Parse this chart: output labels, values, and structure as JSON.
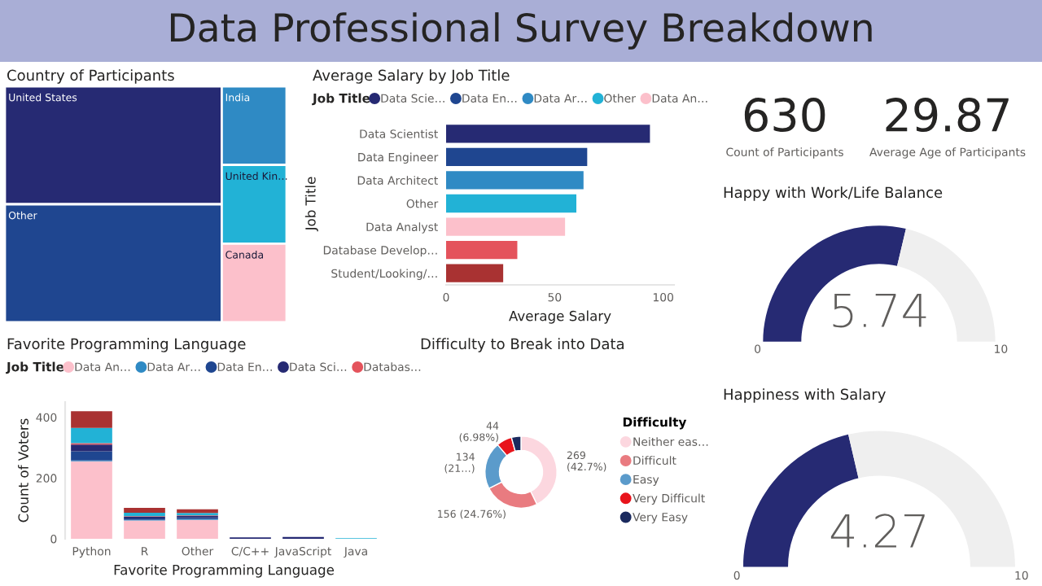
{
  "chart_data": [
    {
      "type": "other",
      "title": "Data Professional Survey Breakdown"
    },
    {
      "type": "other",
      "title": "Country of Participants",
      "categories": [
        "United States",
        "Other",
        "India",
        "United Kin…",
        "Canada"
      ],
      "colors": [
        "#262a73",
        "#1f4690",
        "#2f8ac4",
        "#22b2d6",
        "#fcc0cb"
      ]
    },
    {
      "type": "bar",
      "orientation": "horizontal",
      "title": "Average Salary by Job Title",
      "xlabel": "Average Salary",
      "ylabel": "Job Title",
      "legend_title": "Job Title",
      "legend": "top",
      "categories": [
        "Data Scientist",
        "Data Engineer",
        "Data Architect",
        "Other",
        "Data Analyst",
        "Database Develop…",
        "Student/Looking/…"
      ],
      "series": [
        {
          "name": "Data Scie…",
          "color": "#262a73",
          "values": [
            93.9,
            null,
            null,
            null,
            null,
            null,
            null
          ]
        },
        {
          "name": "Data En…",
          "color": "#1f4690",
          "values": [
            null,
            65,
            null,
            null,
            null,
            null,
            null
          ]
        },
        {
          "name": "Data Ar…",
          "color": "#2f8ac4",
          "values": [
            null,
            null,
            63.3,
            null,
            null,
            null,
            null
          ]
        },
        {
          "name": "Other",
          "color": "#22b2d6",
          "values": [
            null,
            null,
            null,
            60,
            null,
            null,
            null
          ]
        },
        {
          "name": "Data An…",
          "color": "#fcc0cb",
          "values": [
            null,
            null,
            null,
            null,
            54.8,
            null,
            null
          ]
        },
        {
          "color": "#e4535c",
          "values": [
            null,
            null,
            null,
            null,
            null,
            32.8,
            null
          ]
        },
        {
          "color": "#a93232",
          "values": [
            null,
            null,
            null,
            null,
            null,
            null,
            26.3
          ]
        }
      ],
      "xlim": [
        0,
        105
      ],
      "xticks": [
        0,
        50,
        100
      ]
    },
    {
      "type": "other",
      "categories": [
        "Count of Participants",
        "Average Age of Participants"
      ],
      "values": [
        630,
        29.87
      ],
      "data_labels": true
    },
    {
      "type": "donut",
      "title": "Happy with Work/Life Balance",
      "categories": [
        null,
        null
      ],
      "values": [
        5.74,
        4.26
      ],
      "value_labels": [
        "5.74",
        null
      ],
      "colors": [
        "#262a73",
        "#efefef"
      ],
      "annotations": [
        "0",
        "10"
      ]
    },
    {
      "type": "bar",
      "stacked": true,
      "title": "Favorite Programming Language",
      "xlabel": "Favorite Programming Language",
      "ylabel": "Count of Voters",
      "legend_title": "Job Title",
      "legend": "top",
      "categories": [
        "Python",
        "R",
        "Other",
        "C/C++",
        "JavaScript",
        "Java"
      ],
      "series": [
        {
          "name": "Data An…",
          "color": "#fcc0cb",
          "values": [
            255,
            60,
            62,
            null,
            null,
            null
          ]
        },
        {
          "name": "Data Ar…",
          "color": "#2f8ac4",
          "values": [
            3,
            2,
            3,
            null,
            null,
            null
          ]
        },
        {
          "name": "Data En…",
          "color": "#1f4690",
          "values": [
            30,
            5,
            5,
            null,
            null,
            null
          ]
        },
        {
          "name": "Data Sci…",
          "color": "#262a73",
          "values": [
            22,
            5,
            5,
            5,
            6,
            null
          ]
        },
        {
          "name": "Databas…",
          "color": "#e4535c",
          "values": [
            5,
            2,
            2,
            null,
            null,
            null
          ]
        },
        {
          "color": "#22b2d6",
          "values": [
            50,
            12,
            8,
            null,
            null,
            2
          ]
        },
        {
          "color": "#a93232",
          "values": [
            55,
            16,
            12,
            null,
            null,
            null
          ]
        }
      ],
      "ylim": [
        0,
        450
      ],
      "yticks": [
        0,
        200,
        400
      ]
    },
    {
      "type": "donut",
      "title": "Difficulty to Break into Data",
      "legend_title": "Difficulty",
      "legend": "right",
      "categories": [
        "Neither eas…",
        "Difficult",
        "Easy",
        "Very Difficult",
        "Very Easy"
      ],
      "values": [
        269,
        156,
        134,
        44,
        27
      ],
      "value_labels": [
        "269\n(42.7%)",
        "156 (24.76%)",
        "134\n(21…)",
        "44\n(6.98%)",
        null
      ],
      "colors": [
        "#fcd7df",
        "#e97b80",
        "#5b9bcb",
        "#e8141c",
        "#1b2a5e"
      ]
    },
    {
      "type": "donut",
      "title": "Happiness with Salary",
      "categories": [
        null,
        null
      ],
      "values": [
        4.27,
        5.73
      ],
      "value_labels": [
        "4.27",
        null
      ],
      "colors": [
        "#262a73",
        "#efefef"
      ],
      "annotations": [
        "0",
        "10"
      ]
    }
  ]
}
